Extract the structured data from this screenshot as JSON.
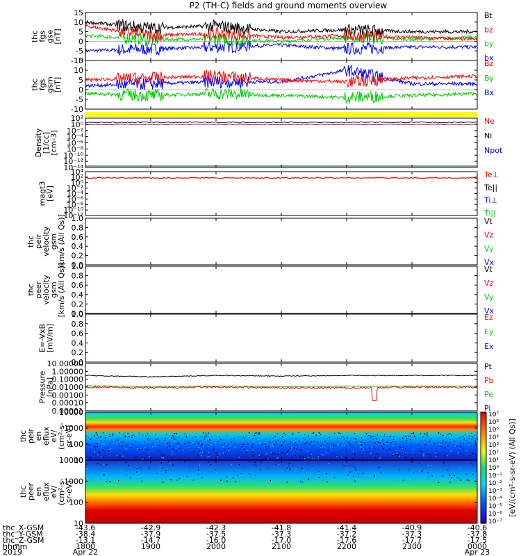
{
  "title": "P2 (TH-C) fields and ground moments overview",
  "colors": {
    "black": "#000000",
    "red": "#ff0000",
    "green": "#00cc00",
    "blue": "#0000ff",
    "yellow": "#ffff00",
    "navy": "#00008b",
    "dark_red": "#8b0000"
  },
  "panels": [
    {
      "id": "fgs",
      "ylabel": [
        "thc",
        "fgs",
        "gse",
        "[nT]"
      ],
      "ylim": [
        -10,
        15
      ],
      "ticks": [
        "15",
        "10",
        "5",
        "0",
        "-5",
        "-10"
      ],
      "legend": [
        {
          "text": "Bt",
          "color": "#000000"
        },
        {
          "text": "bz",
          "color": "#ff0000"
        },
        {
          "text": "by",
          "color": "#00cc00"
        },
        {
          "text": "bx",
          "color": "#0000ff"
        }
      ]
    },
    {
      "id": "fgs-gsm",
      "ylabel": [
        "thc",
        "fgs",
        "gsm",
        "[nT]"
      ],
      "ylim": [
        -10,
        15
      ],
      "ticks": [
        "15",
        "10",
        "5",
        "0",
        "-5",
        "-10"
      ],
      "legend": [
        {
          "text": "Bz",
          "color": "#ff0000"
        },
        {
          "text": "By",
          "color": "#00cc00"
        },
        {
          "text": "Bx",
          "color": "#0000ff"
        }
      ]
    },
    {
      "id": "density",
      "ylabel": [
        "Density",
        "[1/cc]",
        "[cm-3]"
      ],
      "ticks": [
        "10²",
        "10⁰",
        "10⁻²",
        "10⁻⁴",
        "10⁻⁶",
        "10⁻⁸",
        "10⁻¹⁰",
        "10⁻¹²",
        "10⁻¹⁴"
      ],
      "legend": [
        {
          "text": "Ne",
          "color": "#ff0000"
        },
        {
          "text": "Ni",
          "color": "#000000"
        },
        {
          "text": "Npot",
          "color": "#0000ff"
        }
      ]
    },
    {
      "id": "temperature",
      "ylabel": [
        "magt3",
        "[eV]"
      ],
      "ticks": [
        "10⁴",
        "10²",
        "10⁰",
        "10⁻²",
        "10⁻⁴",
        "10⁻⁶",
        "10⁻⁸",
        "10⁻¹⁰",
        "10⁻¹²"
      ],
      "legend": [
        {
          "text": "Te⊥",
          "color": "#ff0000"
        },
        {
          "text": "Te||",
          "color": "#000000"
        },
        {
          "text": "Ti⊥",
          "color": "#0000ff"
        },
        {
          "text": "Ti||",
          "color": "#00cc00"
        }
      ]
    },
    {
      "id": "peir-velocity",
      "ylabel": [
        "thc",
        "peir",
        "velocity",
        "gsm",
        "[km/s (All Qs)]"
      ],
      "ticks": [
        "1.0",
        "0.8",
        "0.6",
        "0.4",
        "0.2",
        "0.0"
      ],
      "legend": [
        {
          "text": "Vt",
          "color": "#000000"
        },
        {
          "text": "Vz",
          "color": "#ff0000"
        },
        {
          "text": "Vy",
          "color": "#00cc00"
        },
        {
          "text": "Vx",
          "color": "#0000ff"
        }
      ]
    },
    {
      "id": "peer-velocity",
      "ylabel": [
        "thc",
        "peer",
        "velocity",
        "gsm",
        "[km/s (All Qs)]"
      ],
      "ticks": [
        "1.0",
        "0.8",
        "0.6",
        "0.4",
        "0.2",
        "0.0"
      ],
      "legend": [
        {
          "text": "Vt",
          "color": "#000000"
        },
        {
          "text": "Vz",
          "color": "#ff0000"
        },
        {
          "text": "Vy",
          "color": "#00cc00"
        },
        {
          "text": "Vx",
          "color": "#0000ff"
        }
      ]
    },
    {
      "id": "efield",
      "ylabel": [
        "E=-VxB",
        "[mV/m]"
      ],
      "ticks": [
        "1.0",
        "0.8",
        "0.6",
        "0.4",
        "0.2",
        "0.0"
      ],
      "legend": [
        {
          "text": "Ez",
          "color": "#ff0000"
        },
        {
          "text": "Ey",
          "color": "#00cc00"
        },
        {
          "text": "Ex",
          "color": "#0000ff"
        }
      ]
    },
    {
      "id": "pressure",
      "ylabel": [
        "Pressure",
        "[nPa]"
      ],
      "ticks": [
        "10.00000",
        "1.00000",
        "0.10000",
        "0.01000",
        "0.00100",
        "0.00010",
        "0.00001"
      ],
      "legend": [
        {
          "text": "Pt",
          "color": "#000000"
        },
        {
          "text": "Pb",
          "color": "#ff0000"
        },
        {
          "text": "Pe",
          "color": "#00cc00"
        },
        {
          "text": "Pi",
          "color": "#0000ff"
        }
      ]
    },
    {
      "id": "peir-spec",
      "ylabel": [
        "thc",
        "peir",
        "en",
        "eflux",
        "eV/",
        "(cm²-s-",
        "sr-eV)"
      ],
      "ticks": [
        "10000",
        "1000",
        "100",
        "10"
      ],
      "legend": []
    },
    {
      "id": "peer-spec",
      "ylabel": [
        "thc",
        "peer",
        "en",
        "eflux",
        "eV/",
        "(cm²-s-",
        "sr-eV)"
      ],
      "ticks": [
        "10000",
        "1000",
        "100",
        "10"
      ],
      "legend": []
    }
  ],
  "colorbar": {
    "label": "[eV/(cm²-s-sr-eV) (All Qs)]",
    "ticks": [
      "10⁷",
      "10⁶",
      "10⁵",
      "10⁴",
      "10³",
      "10²",
      "10¹",
      "10⁰",
      "10⁻¹",
      "10⁻²",
      "10⁻³",
      "10⁻⁴",
      "10⁻⁵",
      "10⁻⁶",
      "10⁻⁷"
    ]
  },
  "x_axis": {
    "row_labels": [
      "thc_X-GSM",
      "thc_Y-GSM",
      "thc_Z-GSM",
      "hhmm",
      "2019"
    ],
    "ticks": [
      [
        "-43.6",
        "-38.4",
        "-13.1",
        "1800",
        "Apr 22"
      ],
      [
        "-42.9",
        "-37.9",
        "-14.7",
        "1900",
        ""
      ],
      [
        "-42.3",
        "-37.5",
        "-16.0",
        "2000",
        ""
      ],
      [
        "-41.8",
        "-37.3",
        "-17.0",
        "2100",
        ""
      ],
      [
        "-41.4",
        "-37.2",
        "-17.6",
        "2200",
        ""
      ],
      [
        "-40.9",
        "-37.3",
        "-17.7",
        "2300",
        ""
      ],
      [
        "-40.6",
        "-37.8",
        "-17.5",
        "0000",
        "Apr 23"
      ]
    ]
  },
  "chart_data": {
    "type": "line",
    "title": "P2 (TH-C) fields and ground moments overview",
    "x": [
      "1800",
      "1900",
      "2000",
      "2100",
      "2200",
      "2300",
      "0000"
    ],
    "series": [
      {
        "name": "Bt",
        "panel": "fgs",
        "values": [
          10,
          7,
          8,
          5,
          6,
          5,
          5
        ]
      },
      {
        "name": "bz",
        "panel": "fgs",
        "values": [
          8,
          3,
          4,
          2,
          3,
          2,
          1
        ]
      },
      {
        "name": "by",
        "panel": "fgs",
        "values": [
          3,
          1,
          1,
          0,
          2,
          1,
          2
        ]
      },
      {
        "name": "bx",
        "panel": "fgs",
        "values": [
          -5,
          -4,
          -3,
          -2,
          -4,
          -3,
          -3
        ]
      },
      {
        "name": "Bz",
        "panel": "fgs-gsm",
        "values": [
          5,
          6,
          7,
          5,
          4,
          6,
          7
        ]
      },
      {
        "name": "By",
        "panel": "fgs-gsm",
        "values": [
          -2,
          -3,
          -2,
          -3,
          -4,
          -3,
          -2
        ]
      },
      {
        "name": "Bx",
        "panel": "fgs-gsm",
        "values": [
          2,
          3,
          4,
          4,
          10,
          3,
          3
        ]
      },
      {
        "name": "Pt",
        "panel": "pressure",
        "values": [
          0.3,
          0.2,
          0.3,
          0.25,
          0.3,
          0.3,
          0.3
        ]
      },
      {
        "name": "Pb",
        "panel": "pressure",
        "values": [
          0.01,
          0.008,
          0.01,
          0.008,
          0.008,
          0.01,
          0.01
        ]
      },
      {
        "name": "Pe",
        "panel": "pressure",
        "values": [
          0.015,
          0.012,
          0.013,
          0.012,
          0.013,
          0.013,
          0.013
        ]
      }
    ]
  }
}
